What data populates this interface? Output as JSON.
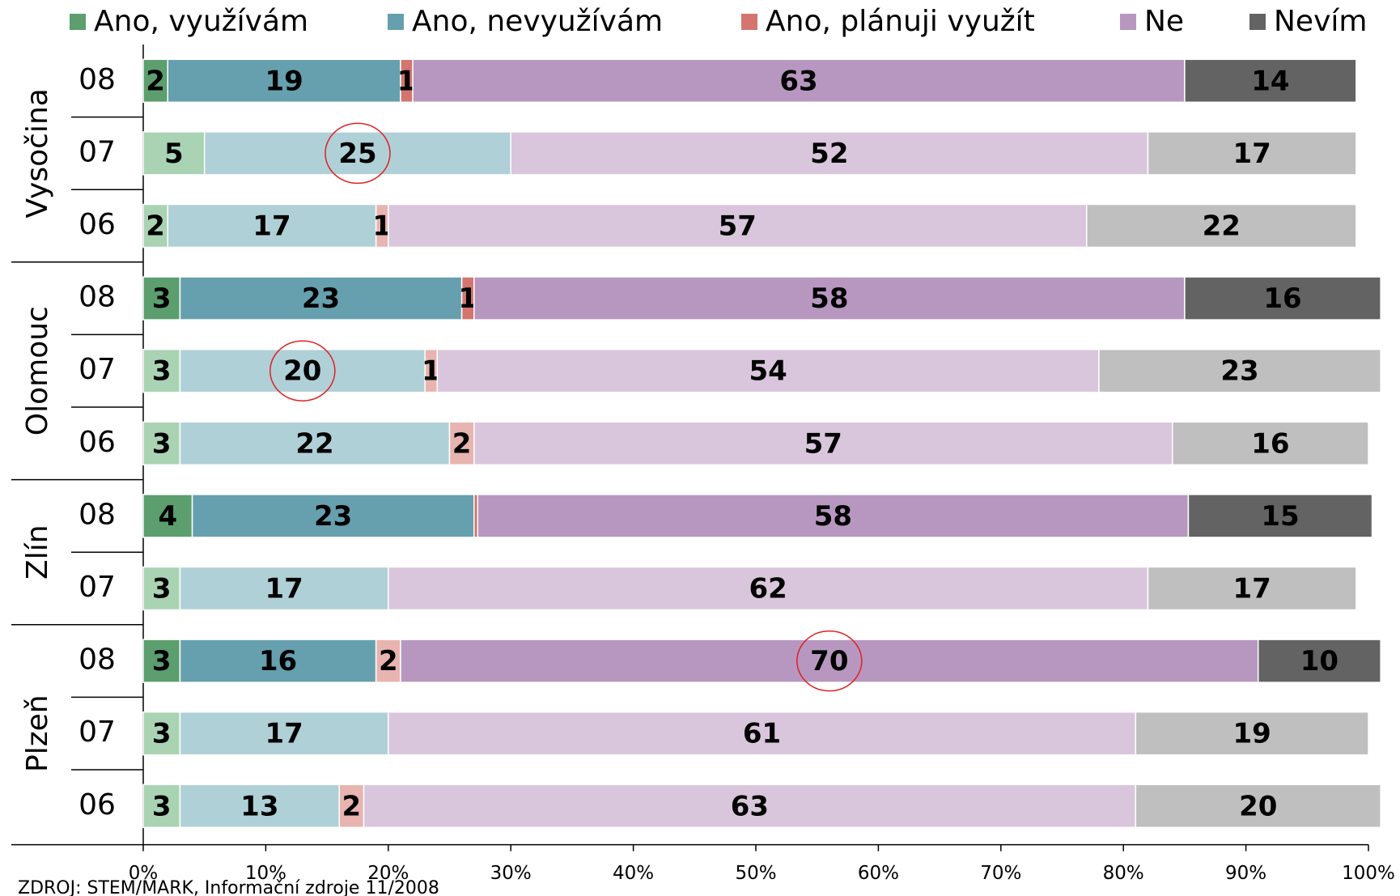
{
  "chart_data": {
    "type": "stacked_barh",
    "groups": [
      {
        "label": "Vysočina",
        "categories": [
          "08",
          "07",
          "06"
        ]
      },
      {
        "label": "Olomouc",
        "categories": [
          "08",
          "07",
          "06"
        ]
      },
      {
        "label": "Zlín",
        "categories": [
          "08",
          "07"
        ]
      },
      {
        "label": "Plzeň",
        "categories": [
          "08",
          "07",
          "06"
        ]
      }
    ],
    "series": [
      {
        "name": "Ano, využívám",
        "color": "#5c9e6e",
        "values": [
          2,
          5,
          2,
          3,
          3,
          3,
          4,
          3,
          3,
          3,
          3
        ],
        "colors": [
          "#5c9e6e",
          "#a9d3b3",
          "#a9d3b3",
          "#5c9e6e",
          "#a9d3b3",
          "#a9d3b3",
          "#5c9e6e",
          "#a9d3b3",
          "#5c9e6e",
          "#a9d3b3",
          "#a9d3b3"
        ]
      },
      {
        "name": "Ano, nevyužívám",
        "color": "#66a0ae",
        "values": [
          19,
          25,
          17,
          23,
          20,
          22,
          23,
          17,
          16,
          17,
          13
        ],
        "colors": [
          "#66a0ae",
          "#b0d0d7",
          "#b0d0d7",
          "#66a0ae",
          "#b0d0d7",
          "#b0d0d7",
          "#66a0ae",
          "#b0d0d7",
          "#66a0ae",
          "#b0d0d7",
          "#b0d0d7"
        ]
      },
      {
        "name": "Ano, plánuji využít",
        "color": "#d4756f",
        "values": [
          1,
          null,
          1,
          1,
          1,
          2,
          0.3,
          null,
          2,
          null,
          2
        ],
        "value_labels": [
          "1",
          null,
          "1",
          "1",
          "1",
          "2",
          null,
          null,
          "2",
          null,
          "2"
        ],
        "colors": [
          "#d4756f",
          "#e8b4b0",
          "#e8b4b0",
          "#d4756f",
          "#e8b4b0",
          "#e8b4b0",
          "#d4756f",
          "#e8b4b0",
          "#e8b4b0",
          "#e8b4b0",
          "#e8b4b0"
        ]
      },
      {
        "name": "Ne",
        "color": "#b797c0",
        "values": [
          63,
          52,
          57,
          58,
          54,
          57,
          58,
          62,
          70,
          61,
          63
        ],
        "colors": [
          "#b797c0",
          "#d9c6dc",
          "#d9c6dc",
          "#b797c0",
          "#d9c6dc",
          "#d9c6dc",
          "#b797c0",
          "#d9c6dc",
          "#b797c0",
          "#d9c6dc",
          "#d9c6dc"
        ]
      },
      {
        "name": "Nevím",
        "color": "#636363",
        "values": [
          14,
          17,
          22,
          16,
          23,
          16,
          15,
          17,
          10,
          19,
          20
        ],
        "colors": [
          "#636363",
          "#bfbfbf",
          "#bfbfbf",
          "#636363",
          "#bfbfbf",
          "#bfbfbf",
          "#636363",
          "#bfbfbf",
          "#636363",
          "#bfbfbf",
          "#bfbfbf"
        ]
      }
    ],
    "xlim": [
      0,
      100
    ],
    "xticks": [
      {
        "value": 0,
        "label": "0%"
      },
      {
        "value": 10,
        "label": "10%"
      },
      {
        "value": 20,
        "label": "20%"
      },
      {
        "value": 30,
        "label": "30%"
      },
      {
        "value": 40,
        "label": "40%"
      },
      {
        "value": 50,
        "label": "50%"
      },
      {
        "value": 60,
        "label": "60%"
      },
      {
        "value": 70,
        "label": "70%"
      },
      {
        "value": 80,
        "label": "80%"
      },
      {
        "value": 90,
        "label": "90%"
      },
      {
        "value": 100,
        "label": "100%"
      }
    ],
    "highlights": [
      {
        "series": 1,
        "index": 1
      },
      {
        "series": 1,
        "index": 4
      },
      {
        "series": 3,
        "index": 8
      }
    ],
    "highlight_color": "#e02020",
    "source": "ZDROJ: STEM/MARK, Informační zdroje 11/2008"
  }
}
